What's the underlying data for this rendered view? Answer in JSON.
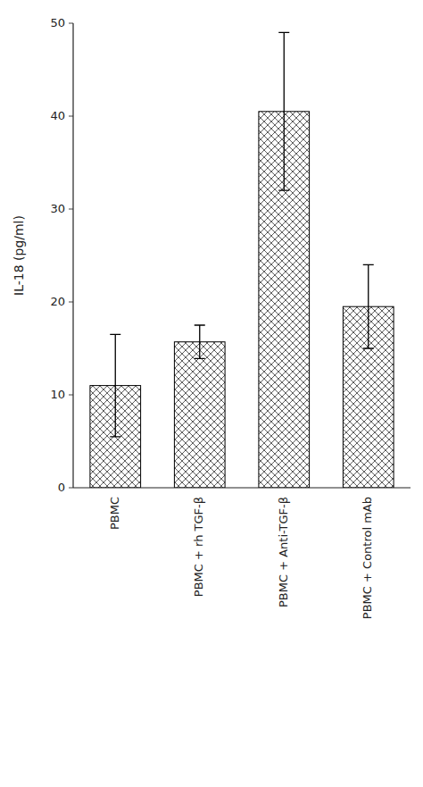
{
  "chart_data": {
    "type": "bar",
    "categories": [
      "PBMC",
      "PBMC + rh TGF-β",
      "PBMC + Anti-TGF-β",
      "PBMC + Control mAb"
    ],
    "values": [
      11.0,
      15.7,
      40.5,
      19.5
    ],
    "errors": [
      5.5,
      1.8,
      8.5,
      4.5
    ],
    "ylabel": "IL-18 (pg/ml)",
    "ylim": [
      0,
      50
    ],
    "yticks": [
      0,
      10,
      20,
      30,
      40,
      50
    ],
    "color": "#ffffff",
    "grid": false
  }
}
